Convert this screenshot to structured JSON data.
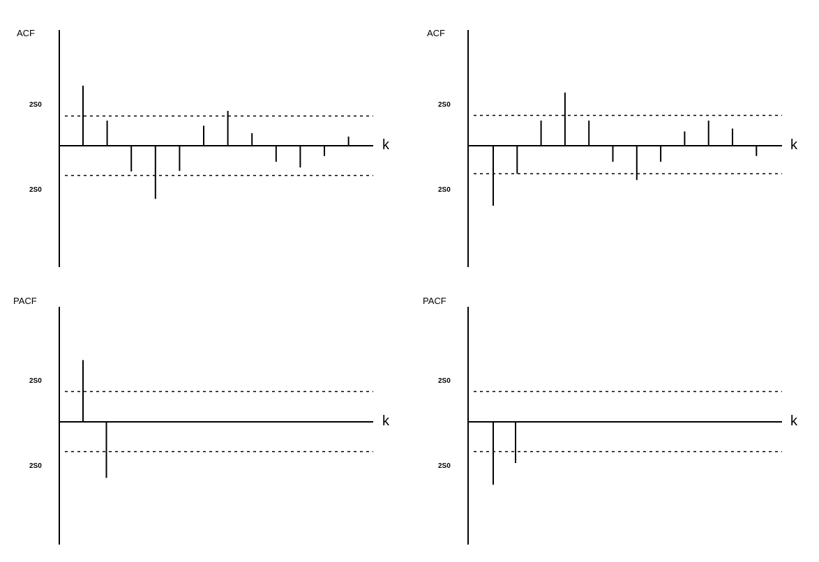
{
  "colors": {
    "background": "#ffffff",
    "ink": "#000000"
  },
  "chart_data": [
    {
      "type": "bar",
      "style": "stem",
      "ylabel": "ACF",
      "xlabel": "k",
      "band_label_upper": "2S0",
      "band_label_lower": "2S0",
      "band": [
        -0.52,
        0.52
      ],
      "ylim": [
        -2.1,
        2.0
      ],
      "lags": [
        1,
        2,
        3,
        4,
        5,
        6,
        7,
        8,
        9,
        10,
        11,
        12
      ],
      "values": [
        1.05,
        0.44,
        -0.45,
        -0.93,
        -0.44,
        0.35,
        0.61,
        0.22,
        -0.28,
        -0.38,
        -0.18,
        0.16
      ],
      "grid": false
    },
    {
      "type": "bar",
      "style": "stem",
      "ylabel": "ACF",
      "xlabel": "k",
      "band_label_upper": "2S0",
      "band_label_lower": "2S0",
      "band": [
        -0.49,
        0.53
      ],
      "ylim": [
        -2.1,
        2.0
      ],
      "lags": [
        1,
        2,
        3,
        4,
        5,
        6,
        7,
        8,
        9,
        10,
        11,
        12
      ],
      "values": [
        -1.05,
        -0.49,
        0.44,
        0.93,
        0.44,
        -0.28,
        -0.6,
        -0.28,
        0.25,
        0.44,
        0.3,
        -0.18
      ],
      "grid": false
    },
    {
      "type": "bar",
      "style": "stem",
      "ylabel": "PACF",
      "xlabel": "k",
      "band_label_upper": "2S0",
      "band_label_lower": "2S0",
      "band": [
        -0.52,
        0.53
      ],
      "ylim": [
        -2.1,
        2.0
      ],
      "lags": [
        1,
        2
      ],
      "values": [
        1.08,
        -0.98
      ],
      "grid": false
    },
    {
      "type": "bar",
      "style": "stem",
      "ylabel": "PACF",
      "xlabel": "k",
      "band_label_upper": "2S0",
      "band_label_lower": "2S0",
      "band": [
        -0.52,
        0.53
      ],
      "ylim": [
        -2.1,
        2.0
      ],
      "lags": [
        1,
        2
      ],
      "values": [
        -1.1,
        -0.72
      ],
      "grid": false
    }
  ]
}
